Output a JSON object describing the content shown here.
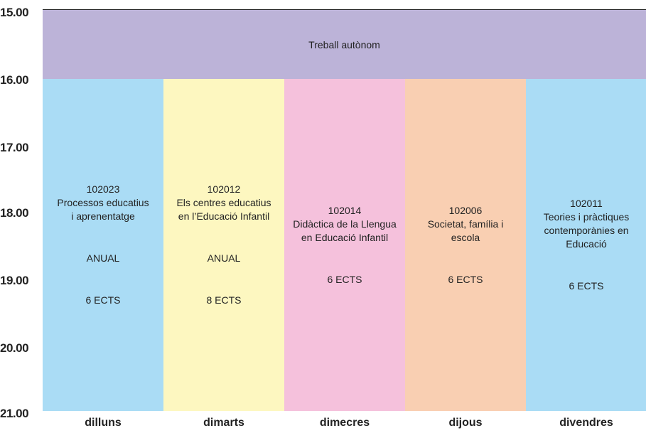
{
  "band": "Treball autònom",
  "times": [
    "15.00",
    "16.00",
    "17.00",
    "18.00",
    "19.00",
    "20.00",
    "21.00"
  ],
  "days": [
    "dilluns",
    "dimarts",
    "dimecres",
    "dijous",
    "divendres"
  ],
  "courses": [
    {
      "code": "102023",
      "name": [
        "Processos educatius",
        "i aprenentatge"
      ],
      "term": "ANUAL",
      "ects": "6 ECTS"
    },
    {
      "code": "102012",
      "name": [
        "Els centres educatius",
        "en l’Educació Infantil"
      ],
      "term": "ANUAL",
      "ects": "8 ECTS"
    },
    {
      "code": "102014",
      "name": [
        "Didàctica de la Llengua",
        "en Educació Infantil"
      ],
      "ects": "6 ECTS"
    },
    {
      "code": "102006",
      "name": [
        "Societat, família i",
        "escola"
      ],
      "ects": "6 ECTS"
    },
    {
      "code": "102011",
      "name": [
        "Teories i pràctiques",
        "contemporànies en",
        "Educació"
      ],
      "ects": "6 ECTS"
    }
  ]
}
